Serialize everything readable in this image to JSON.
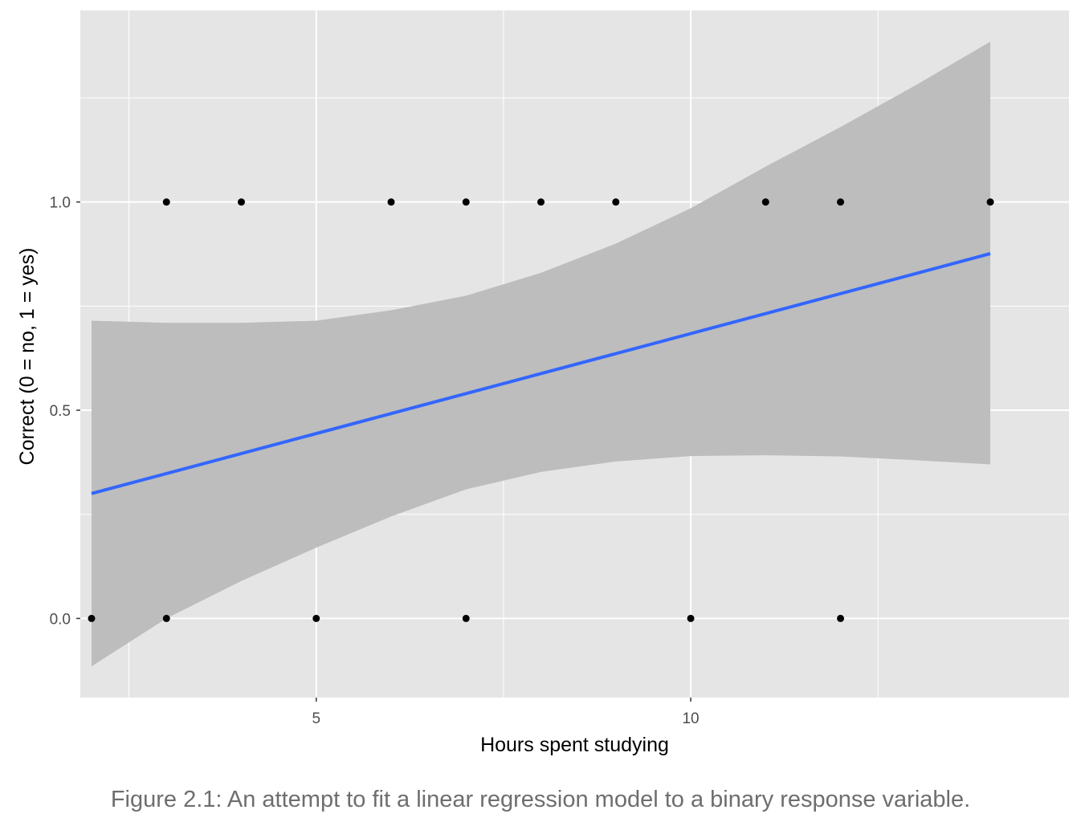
{
  "chart_data": {
    "type": "scatter",
    "xlabel": "Hours spent studying",
    "ylabel": "Correct (0 = no, 1 = yes)",
    "xlim": [
      1.85,
      15.05
    ],
    "ylim": [
      -0.19,
      1.46
    ],
    "x_ticks": [
      5,
      10
    ],
    "x_tick_labels": [
      "5",
      "10"
    ],
    "y_ticks": [
      0.0,
      0.5,
      1.0
    ],
    "y_tick_labels": [
      "0.0",
      "0.5",
      "1.0"
    ],
    "grid": true,
    "points": [
      {
        "x": 2,
        "y": 0
      },
      {
        "x": 3,
        "y": 0
      },
      {
        "x": 5,
        "y": 0
      },
      {
        "x": 7,
        "y": 0
      },
      {
        "x": 10,
        "y": 0
      },
      {
        "x": 12,
        "y": 0
      },
      {
        "x": 3,
        "y": 1
      },
      {
        "x": 4,
        "y": 1
      },
      {
        "x": 6,
        "y": 1
      },
      {
        "x": 7,
        "y": 1
      },
      {
        "x": 8,
        "y": 1
      },
      {
        "x": 9,
        "y": 1
      },
      {
        "x": 11,
        "y": 1
      },
      {
        "x": 12,
        "y": 1
      },
      {
        "x": 14,
        "y": 1
      }
    ],
    "fit_line": {
      "x": [
        2,
        14
      ],
      "y": [
        0.3,
        0.876
      ]
    },
    "confidence_band": {
      "x": [
        2,
        3,
        4,
        5,
        6,
        7,
        8,
        9,
        10,
        11,
        12,
        13,
        14
      ],
      "lower": [
        -0.115,
        0.0,
        0.09,
        0.17,
        0.245,
        0.31,
        0.352,
        0.377,
        0.39,
        0.392,
        0.389,
        0.38,
        0.37
      ],
      "upper": [
        0.715,
        0.71,
        0.71,
        0.715,
        0.74,
        0.775,
        0.83,
        0.9,
        0.985,
        1.085,
        1.18,
        1.28,
        1.385
      ]
    },
    "colors": {
      "panel": "#e5e5e5",
      "grid": "#ffffff",
      "band": "#bdbdbd",
      "line": "#3366ff",
      "points": "#000000"
    }
  },
  "caption": "Figure 2.1: An attempt to fit a linear regression model to a binary response variable."
}
